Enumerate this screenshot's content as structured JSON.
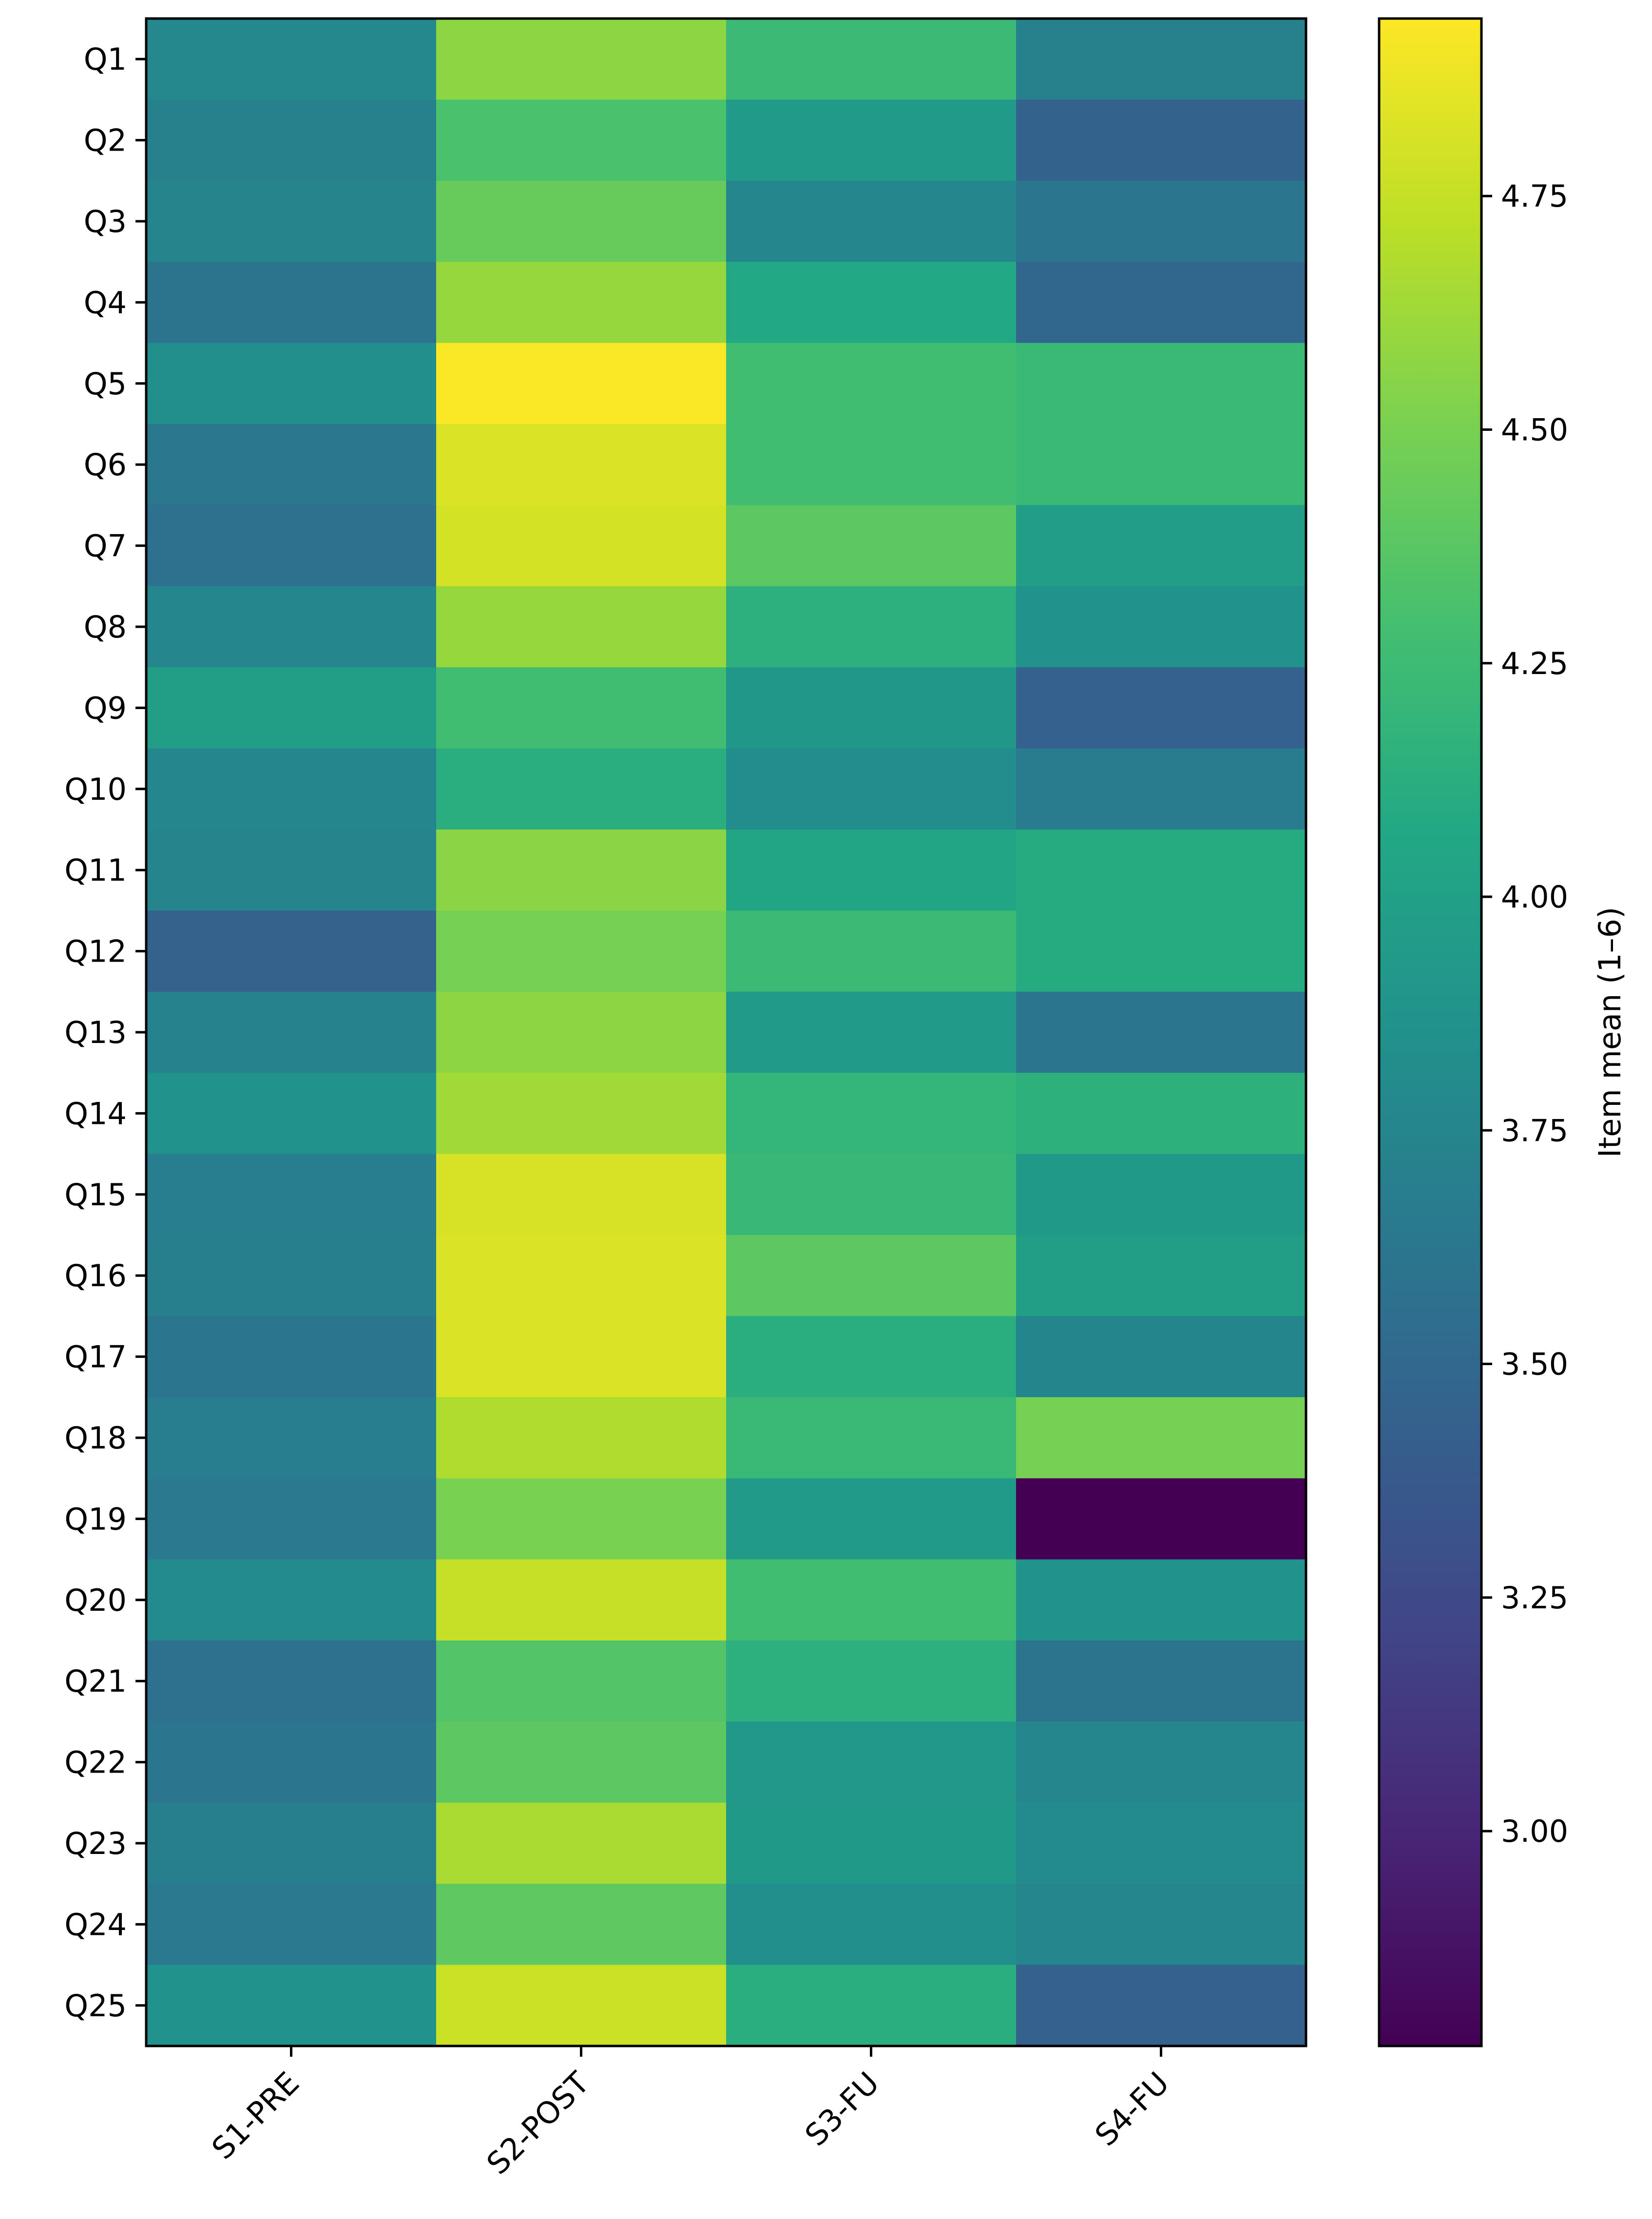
{
  "chart_data": {
    "type": "heatmap",
    "title": "",
    "xlabel": "",
    "ylabel": "",
    "x_categories": [
      "S1-PRE",
      "S2-POST",
      "S3-FU",
      "S4-FU"
    ],
    "y_categories": [
      "Q1",
      "Q2",
      "Q3",
      "Q4",
      "Q5",
      "Q6",
      "Q7",
      "Q8",
      "Q9",
      "Q10",
      "Q11",
      "Q12",
      "Q13",
      "Q14",
      "Q15",
      "Q16",
      "Q17",
      "Q18",
      "Q19",
      "Q20",
      "Q21",
      "Q22",
      "Q23",
      "Q24",
      "Q25"
    ],
    "values": [
      [
        3.78,
        4.57,
        4.24,
        3.72
      ],
      [
        3.72,
        4.31,
        3.94,
        3.46
      ],
      [
        3.74,
        4.43,
        3.77,
        3.61
      ],
      [
        3.6,
        4.6,
        4.07,
        3.49
      ],
      [
        3.84,
        4.93,
        4.27,
        4.22
      ],
      [
        3.63,
        4.82,
        4.27,
        4.22
      ],
      [
        3.58,
        4.8,
        4.39,
        3.97
      ],
      [
        3.76,
        4.6,
        4.14,
        3.86
      ],
      [
        3.98,
        4.27,
        3.91,
        3.44
      ],
      [
        3.77,
        4.13,
        3.81,
        3.67
      ],
      [
        3.74,
        4.56,
        4.04,
        4.1
      ],
      [
        3.45,
        4.49,
        4.24,
        4.1
      ],
      [
        3.73,
        4.57,
        3.94,
        3.62
      ],
      [
        3.86,
        4.63,
        4.19,
        4.15
      ],
      [
        3.68,
        4.81,
        4.21,
        3.93
      ],
      [
        3.7,
        4.82,
        4.39,
        3.98
      ],
      [
        3.62,
        4.82,
        4.13,
        3.75
      ],
      [
        3.69,
        4.68,
        4.22,
        4.49
      ],
      [
        3.65,
        4.5,
        3.94,
        2.77
      ],
      [
        3.8,
        4.75,
        4.27,
        3.86
      ],
      [
        3.58,
        4.35,
        4.14,
        3.6
      ],
      [
        3.61,
        4.39,
        3.92,
        3.76
      ],
      [
        3.7,
        4.66,
        3.93,
        3.8
      ],
      [
        3.65,
        4.4,
        3.84,
        3.76
      ],
      [
        3.86,
        4.77,
        4.13,
        3.44
      ]
    ],
    "colormap": "viridis",
    "vmin": 2.77,
    "vmax": 4.94,
    "colorbar": {
      "label": "Item mean (1–6)",
      "ticks": [
        3.0,
        3.25,
        3.5,
        3.75,
        4.0,
        4.25,
        4.5,
        4.75
      ],
      "tick_labels": [
        "3.00",
        "3.25",
        "3.50",
        "3.75",
        "4.00",
        "4.25",
        "4.50",
        "4.75"
      ]
    }
  }
}
